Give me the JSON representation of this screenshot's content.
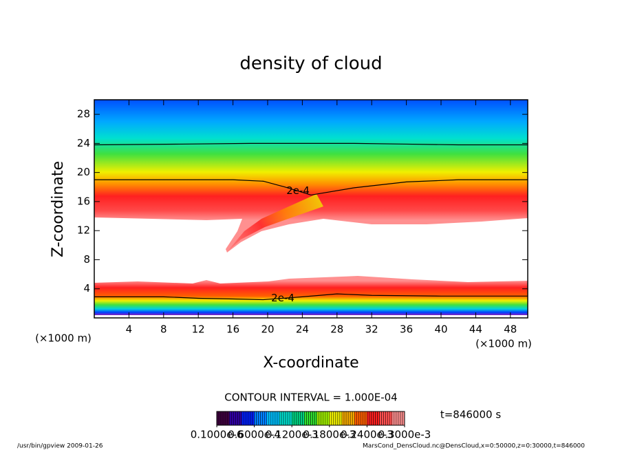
{
  "chart_data": {
    "type": "contour",
    "title": "density of cloud",
    "xlabel": "X-coordinate",
    "ylabel": "Z-coordinate",
    "x_unit": "(×1000 m)",
    "xlim": [
      0,
      50
    ],
    "ylim": [
      0,
      30
    ],
    "xticks": [
      4,
      8,
      12,
      16,
      20,
      24,
      28,
      32,
      36,
      40,
      44,
      48
    ],
    "yticks": [
      4,
      8,
      12,
      16,
      20,
      24,
      28
    ],
    "contours": [
      {
        "x": [
          0,
          10,
          18,
          22,
          25,
          30,
          36,
          42,
          50
        ],
        "y": [
          23.8,
          23.9,
          24,
          24,
          24,
          24,
          23.9,
          23.8,
          23.8
        ]
      },
      {
        "label": "2e-4",
        "x": [
          0,
          10,
          16,
          19.5,
          22,
          25,
          30,
          36,
          42,
          50
        ],
        "y": [
          19,
          19,
          19,
          18.8,
          18,
          16.9,
          17.9,
          18.7,
          19,
          19
        ]
      },
      {
        "label": "2e-4",
        "x": [
          0,
          8,
          12,
          16,
          19.5,
          24,
          28,
          32,
          40,
          50
        ],
        "y": [
          2.9,
          2.9,
          2.7,
          2.6,
          2.5,
          2.9,
          3.3,
          3.1,
          3.0,
          3.0
        ]
      }
    ],
    "contour_interval": "CONTOUR INTERVAL = 1.000E-04",
    "time_label": "t=846000 s",
    "colorbar": {
      "clim": [
        0,
        0.0003
      ],
      "colors": [
        "#400040",
        "#3000a0",
        "#0020ff",
        "#0080ff",
        "#00c0ff",
        "#00e0d0",
        "#00d080",
        "#30e030",
        "#a0f000",
        "#f0f000",
        "#ffb000",
        "#ff6000",
        "#ff2020",
        "#ff5050",
        "#ff9090"
      ],
      "ticks": [
        {
          "value": 1e-07,
          "label": "0.1000e-6"
        },
        {
          "value": 6e-05,
          "label": "0.6000e-4"
        },
        {
          "value": 0.00012,
          "label": "0.1200e-3"
        },
        {
          "value": 0.00018,
          "label": "0.1800e-3"
        },
        {
          "value": 0.00024,
          "label": "0.2400e-3"
        },
        {
          "value": 0.0003,
          "label": "0.3000e-3"
        }
      ]
    },
    "footer_left": "/usr/bin/gpview  2009-01-26",
    "footer_right": "MarsCond_DensCloud.nc@DensCloud,x=0:50000,z=0:30000,t=846000"
  }
}
